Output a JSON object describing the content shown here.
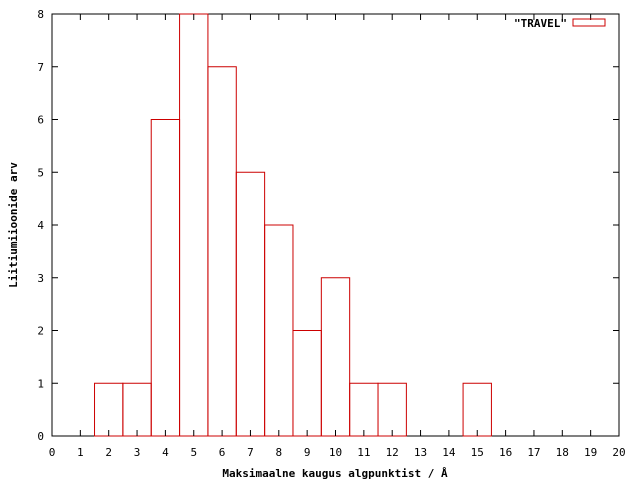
{
  "chart_data": {
    "type": "bar",
    "style": "histogram-steps",
    "categories": [
      "2",
      "3",
      "4",
      "5",
      "6",
      "7",
      "8",
      "9",
      "10",
      "11",
      "12",
      "15"
    ],
    "x": [
      2,
      3,
      4,
      5,
      6,
      7,
      8,
      9,
      10,
      11,
      12,
      15
    ],
    "series": [
      {
        "name": "\"TRAVEL\"",
        "values": [
          1,
          1,
          6,
          8,
          7,
          5,
          4,
          2,
          3,
          1,
          1,
          1
        ]
      }
    ],
    "bin_width": 1,
    "xlabel": "Maksimaalne kaugus algpunktist / Å",
    "ylabel": "Liitiumiioonide arv",
    "xlim": [
      0,
      20
    ],
    "ylim": [
      0,
      8
    ],
    "xticks": [
      "0",
      "1",
      "2",
      "3",
      "4",
      "5",
      "6",
      "7",
      "8",
      "9",
      "10",
      "11",
      "12",
      "13",
      "14",
      "15",
      "16",
      "17",
      "18",
      "19",
      "20"
    ],
    "yticks": [
      "0",
      "1",
      "2",
      "3",
      "4",
      "5",
      "6",
      "7",
      "8"
    ],
    "grid": false,
    "legend_position": "top-right",
    "colors": {
      "series": "#cc0000",
      "axes": "#000000"
    }
  }
}
